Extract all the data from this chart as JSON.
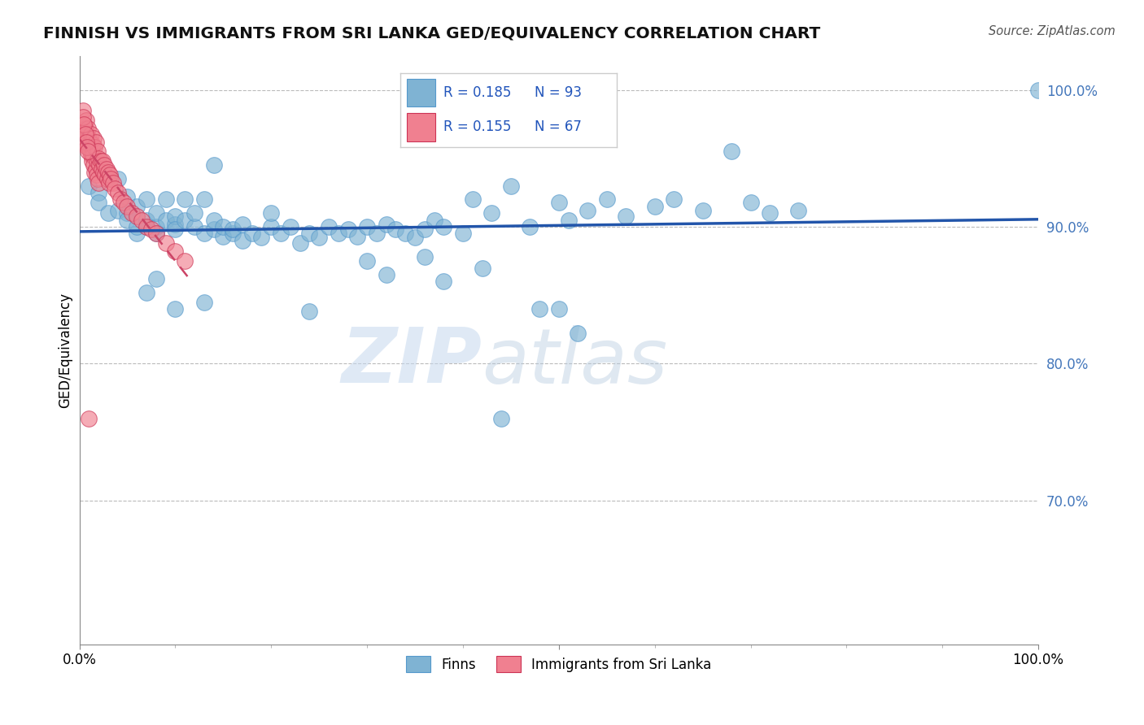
{
  "title": "FINNISH VS IMMIGRANTS FROM SRI LANKA GED/EQUIVALENCY CORRELATION CHART",
  "source": "Source: ZipAtlas.com",
  "ylabel": "GED/Equivalency",
  "legend_label1": "Finns",
  "legend_label2": "Immigrants from Sri Lanka",
  "r1": 0.185,
  "n1": 93,
  "r2": 0.155,
  "n2": 67,
  "color_finns": "#7fb3d3",
  "color_sri": "#f08090",
  "trendline_finns": "#2255aa",
  "trendline_sri": "#cc4466",
  "background": "#ffffff",
  "watermark_zip": "ZIP",
  "watermark_atlas": "atlas",
  "xmin": 0.0,
  "xmax": 1.0,
  "ymin": 0.595,
  "ymax": 1.025,
  "yticks": [
    0.7,
    0.8,
    0.9,
    1.0
  ],
  "ytick_labels": [
    "70.0%",
    "80.0%",
    "90.0%",
    "100.0%"
  ],
  "finns_x": [
    0.01,
    0.02,
    0.02,
    0.03,
    0.03,
    0.04,
    0.04,
    0.05,
    0.05,
    0.05,
    0.06,
    0.06,
    0.06,
    0.07,
    0.07,
    0.07,
    0.08,
    0.08,
    0.08,
    0.09,
    0.09,
    0.1,
    0.1,
    0.1,
    0.11,
    0.11,
    0.12,
    0.12,
    0.13,
    0.13,
    0.14,
    0.14,
    0.15,
    0.15,
    0.16,
    0.16,
    0.17,
    0.17,
    0.18,
    0.19,
    0.2,
    0.2,
    0.21,
    0.22,
    0.23,
    0.24,
    0.25,
    0.26,
    0.27,
    0.28,
    0.29,
    0.3,
    0.31,
    0.32,
    0.33,
    0.34,
    0.35,
    0.36,
    0.37,
    0.38,
    0.4,
    0.41,
    0.43,
    0.45,
    0.47,
    0.5,
    0.51,
    0.53,
    0.55,
    0.57,
    0.6,
    0.62,
    0.65,
    0.7,
    0.72,
    0.75,
    0.38,
    0.48,
    0.52,
    0.42,
    0.32,
    0.24,
    0.5,
    0.44,
    0.68,
    0.3,
    0.36,
    0.14,
    0.1,
    0.08,
    0.07,
    0.13,
    1.0
  ],
  "finns_y": [
    0.93,
    0.925,
    0.918,
    0.935,
    0.91,
    0.935,
    0.912,
    0.91,
    0.922,
    0.905,
    0.895,
    0.915,
    0.9,
    0.905,
    0.92,
    0.9,
    0.9,
    0.91,
    0.895,
    0.905,
    0.92,
    0.902,
    0.908,
    0.898,
    0.905,
    0.92,
    0.9,
    0.91,
    0.895,
    0.92,
    0.898,
    0.905,
    0.893,
    0.9,
    0.895,
    0.898,
    0.89,
    0.902,
    0.895,
    0.892,
    0.9,
    0.91,
    0.895,
    0.9,
    0.888,
    0.895,
    0.892,
    0.9,
    0.895,
    0.898,
    0.893,
    0.9,
    0.895,
    0.902,
    0.898,
    0.895,
    0.892,
    0.898,
    0.905,
    0.9,
    0.895,
    0.92,
    0.91,
    0.93,
    0.9,
    0.918,
    0.905,
    0.912,
    0.92,
    0.908,
    0.915,
    0.92,
    0.912,
    0.918,
    0.91,
    0.912,
    0.86,
    0.84,
    0.822,
    0.87,
    0.865,
    0.838,
    0.84,
    0.76,
    0.955,
    0.875,
    0.878,
    0.945,
    0.84,
    0.862,
    0.852,
    0.845,
    1.0
  ],
  "sri_x": [
    0.003,
    0.004,
    0.005,
    0.006,
    0.007,
    0.007,
    0.008,
    0.008,
    0.009,
    0.009,
    0.01,
    0.01,
    0.011,
    0.011,
    0.012,
    0.012,
    0.013,
    0.013,
    0.014,
    0.014,
    0.015,
    0.015,
    0.016,
    0.016,
    0.017,
    0.017,
    0.018,
    0.018,
    0.019,
    0.019,
    0.02,
    0.02,
    0.021,
    0.022,
    0.023,
    0.024,
    0.025,
    0.026,
    0.027,
    0.028,
    0.029,
    0.03,
    0.031,
    0.032,
    0.033,
    0.035,
    0.037,
    0.04,
    0.043,
    0.046,
    0.05,
    0.055,
    0.06,
    0.065,
    0.07,
    0.075,
    0.08,
    0.09,
    0.1,
    0.11,
    0.004,
    0.005,
    0.006,
    0.007,
    0.008,
    0.009,
    0.01
  ],
  "sri_y": [
    0.97,
    0.985,
    0.975,
    0.972,
    0.978,
    0.965,
    0.968,
    0.96,
    0.972,
    0.958,
    0.965,
    0.958,
    0.962,
    0.955,
    0.968,
    0.952,
    0.958,
    0.948,
    0.96,
    0.952,
    0.965,
    0.945,
    0.958,
    0.94,
    0.962,
    0.942,
    0.948,
    0.938,
    0.955,
    0.935,
    0.95,
    0.932,
    0.945,
    0.948,
    0.942,
    0.948,
    0.94,
    0.945,
    0.938,
    0.942,
    0.935,
    0.94,
    0.932,
    0.938,
    0.935,
    0.932,
    0.928,
    0.925,
    0.92,
    0.918,
    0.915,
    0.91,
    0.908,
    0.905,
    0.9,
    0.898,
    0.895,
    0.888,
    0.882,
    0.875,
    0.98,
    0.975,
    0.968,
    0.962,
    0.958,
    0.955,
    0.76
  ]
}
